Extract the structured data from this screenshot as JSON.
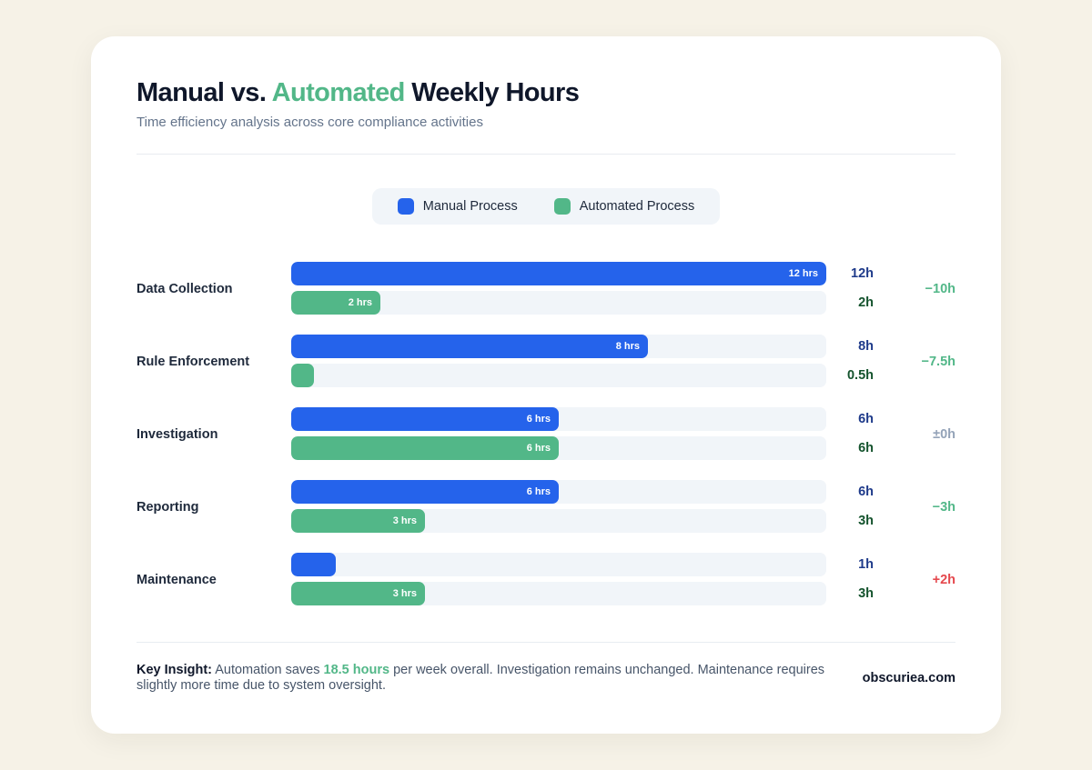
{
  "header": {
    "title_part1": "Manual vs.",
    "title_accent": "Automated",
    "title_part2": "Weekly Hours",
    "subtitle": "Time efficiency analysis across core compliance activities"
  },
  "legend": {
    "manual_label": "Manual Process",
    "automated_label": "Automated Process"
  },
  "colors": {
    "manual": "#2563eb",
    "automated": "#52b788",
    "saving": "#52b788",
    "neutral": "#94a3b8",
    "increase": "#e5484d"
  },
  "chart_data": {
    "type": "bar",
    "orientation": "horizontal",
    "categories": [
      "Data Collection",
      "Rule Enforcement",
      "Investigation",
      "Reporting",
      "Maintenance"
    ],
    "series": [
      {
        "name": "Manual Process",
        "values": [
          12,
          8,
          6,
          6,
          1
        ],
        "bar_labels": [
          "12 hrs",
          "8 hrs",
          "6 hrs",
          "6 hrs",
          ""
        ],
        "value_labels": [
          "12h",
          "8h",
          "6h",
          "6h",
          "1h"
        ]
      },
      {
        "name": "Automated Process",
        "values": [
          2,
          0.5,
          6,
          3,
          3
        ],
        "bar_labels": [
          "2 hrs",
          "",
          "6 hrs",
          "3 hrs",
          "3 hrs"
        ],
        "value_labels": [
          "2h",
          "0.5h",
          "6h",
          "3h",
          "3h"
        ]
      }
    ],
    "differences": [
      "−10h",
      "−7.5h",
      "±0h",
      "−3h",
      "+2h"
    ],
    "difference_kinds": [
      "saving",
      "saving",
      "neutral",
      "saving",
      "increase"
    ],
    "xlim": [
      0,
      12
    ],
    "legend_position": "top-center",
    "grid": false
  },
  "footer": {
    "key_label": "Key Insight:",
    "text_before": "Automation saves",
    "highlight": "18.5 hours",
    "text_after": "per week overall. Investigation remains unchanged. Maintenance requires slightly more time due to system oversight.",
    "brand": "obscuriea.com"
  }
}
